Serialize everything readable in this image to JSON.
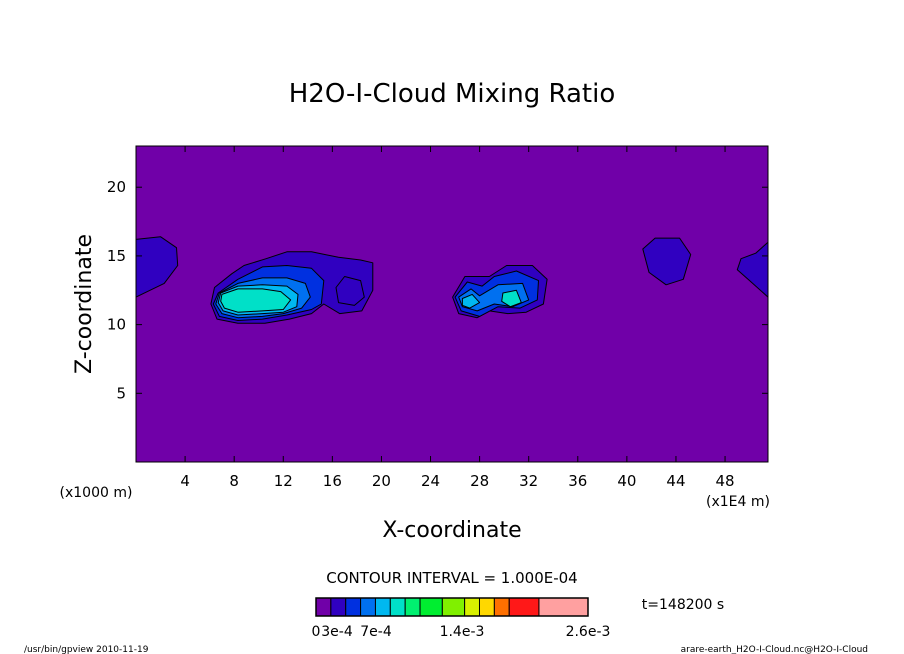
{
  "chart_data": {
    "type": "heatmap",
    "title": "H2O-I-Cloud Mixing Ratio",
    "xlabel": "X-coordinate",
    "ylabel": "Z-coordinate",
    "x_unit_left": "(x1000 m)",
    "x_unit_right": "(x1E4 m)",
    "xlim": [
      0,
      51.5
    ],
    "ylim": [
      0,
      23
    ],
    "x_ticks": [
      4,
      8,
      12,
      16,
      20,
      24,
      28,
      32,
      36,
      40,
      44,
      48
    ],
    "y_ticks": [
      5,
      10,
      15,
      20
    ],
    "contour_interval_text": "CONTOUR INTERVAL = 1.000E-04",
    "time_text": "t=148200 s",
    "colorbar": {
      "colors": [
        "#7000a8",
        "#3000c0",
        "#0030e0",
        "#0070f0",
        "#00b8f0",
        "#00e0c8",
        "#00f070",
        "#00ee30",
        "#80f000",
        "#d8f000",
        "#ffd800",
        "#ff7000",
        "#ff1818",
        "#ffa0a0"
      ],
      "widths": [
        1,
        1,
        1,
        1,
        1,
        1,
        1,
        1.5,
        1.5,
        1,
        1,
        1,
        2,
        3.3
      ],
      "labels": [
        "0",
        "3e-4",
        "7e-4",
        "1.4e-3",
        "2.6e-3"
      ]
    },
    "background_color": "#7000a8",
    "features": [
      {
        "name": "left-edge-cloud",
        "levels": [
          [
            [
              0,
              16.2
            ],
            [
              2,
              16.4
            ],
            [
              3.3,
              15.6
            ],
            [
              3.4,
              14.3
            ],
            [
              2.3,
              13
            ],
            [
              0,
              12
            ]
          ]
        ]
      },
      {
        "name": "main-cloud",
        "levels": [
          [
            [
              6.4,
              12.7
            ],
            [
              7.8,
              13.7
            ],
            [
              8.8,
              14.3
            ],
            [
              10.6,
              14.8
            ],
            [
              12.3,
              15.3
            ],
            [
              14.3,
              15.3
            ],
            [
              16.5,
              14.9
            ],
            [
              18.3,
              14.7
            ],
            [
              19.3,
              14.5
            ],
            [
              19.3,
              12.5
            ],
            [
              18.4,
              11
            ],
            [
              16.6,
              10.8
            ],
            [
              15.3,
              11.5
            ],
            [
              14.3,
              10.8
            ],
            [
              12.5,
              10.4
            ],
            [
              10.5,
              10.1
            ],
            [
              8.3,
              10.1
            ],
            [
              6.6,
              10.4
            ],
            [
              6.1,
              11.5
            ]
          ],
          [
            [
              6.7,
              12.3
            ],
            [
              8.3,
              13.3
            ],
            [
              10.3,
              14.2
            ],
            [
              12.3,
              14.3
            ],
            [
              14.3,
              14.1
            ],
            [
              15.3,
              13.2
            ],
            [
              15.1,
              11.5
            ],
            [
              14.3,
              11.1
            ],
            [
              12.3,
              10.7
            ],
            [
              10.3,
              10.4
            ],
            [
              8.3,
              10.3
            ],
            [
              6.8,
              10.6
            ],
            [
              6.3,
              11.5
            ]
          ],
          [
            [
              6.8,
              12.3
            ],
            [
              8.3,
              13
            ],
            [
              10.3,
              13.4
            ],
            [
              12.3,
              13.4
            ],
            [
              13.8,
              13
            ],
            [
              14.2,
              12
            ],
            [
              13.5,
              11.2
            ],
            [
              12,
              10.8
            ],
            [
              10.3,
              10.6
            ],
            [
              8.3,
              10.5
            ],
            [
              7,
              10.8
            ],
            [
              6.5,
              11.5
            ]
          ],
          [
            [
              6.9,
              12.3
            ],
            [
              8.3,
              12.8
            ],
            [
              10.3,
              12.9
            ],
            [
              12.3,
              12.8
            ],
            [
              13.2,
              12.2
            ],
            [
              13.1,
              11.3
            ],
            [
              12,
              10.9
            ],
            [
              10.3,
              10.8
            ],
            [
              8.3,
              10.7
            ],
            [
              7.1,
              11
            ],
            [
              6.7,
              11.6
            ]
          ],
          [
            [
              7,
              12.2
            ],
            [
              8.3,
              12.6
            ],
            [
              10.3,
              12.6
            ],
            [
              11.8,
              12.4
            ],
            [
              12.6,
              11.8
            ],
            [
              12,
              11.1
            ],
            [
              10.3,
              11
            ],
            [
              8.3,
              10.9
            ],
            [
              7.2,
              11.2
            ],
            [
              6.9,
              11.7
            ]
          ]
        ]
      },
      {
        "name": "main-cloud-side-blob",
        "levels": [
          [
            [
              17,
              13.5
            ],
            [
              18.3,
              13.2
            ],
            [
              18.6,
              12
            ],
            [
              17.8,
              11.4
            ],
            [
              16.5,
              11.6
            ],
            [
              16.3,
              12.7
            ]
          ]
        ]
      },
      {
        "name": "right-cloud",
        "levels": [
          [
            [
              25.8,
              12
            ],
            [
              26.8,
              13.5
            ],
            [
              28.8,
              13.5
            ],
            [
              30.2,
              14.3
            ],
            [
              32.3,
              14.3
            ],
            [
              33.5,
              13.3
            ],
            [
              33.2,
              11.5
            ],
            [
              31.8,
              10.9
            ],
            [
              30.3,
              10.8
            ],
            [
              28.8,
              11
            ],
            [
              27.8,
              10.5
            ],
            [
              26.3,
              10.8
            ]
          ],
          [
            [
              26,
              12
            ],
            [
              27,
              13.1
            ],
            [
              28.2,
              12.8
            ],
            [
              29.2,
              13.5
            ],
            [
              31,
              13.9
            ],
            [
              32.8,
              13.2
            ],
            [
              32.7,
              11.8
            ],
            [
              31.3,
              11.2
            ],
            [
              29.5,
              11.3
            ],
            [
              28,
              10.6
            ],
            [
              26.5,
              11
            ]
          ],
          [
            [
              26.3,
              12
            ],
            [
              27.3,
              12.6
            ],
            [
              28,
              12.1
            ],
            [
              29.5,
              12.9
            ],
            [
              31.5,
              13
            ],
            [
              32,
              11.8
            ],
            [
              30.7,
              11.3
            ],
            [
              29.2,
              11.5
            ],
            [
              27.8,
              11
            ],
            [
              26.6,
              11.3
            ]
          ],
          [
            [
              26.6,
              11.9
            ],
            [
              27.4,
              12.2
            ],
            [
              28,
              11.6
            ],
            [
              27.2,
              11.2
            ],
            [
              26.6,
              11.4
            ]
          ],
          [
            [
              29.9,
              12.3
            ],
            [
              31,
              12.5
            ],
            [
              31.4,
              11.6
            ],
            [
              30.5,
              11.3
            ],
            [
              29.8,
              11.7
            ]
          ]
        ]
      },
      {
        "name": "cloud-44",
        "levels": [
          [
            [
              41.3,
              15.5
            ],
            [
              42.3,
              16.3
            ],
            [
              44.3,
              16.3
            ],
            [
              45.2,
              15.1
            ],
            [
              44.6,
              13.3
            ],
            [
              43.2,
              12.9
            ],
            [
              41.8,
              13.8
            ]
          ]
        ]
      },
      {
        "name": "right-edge-cloud",
        "levels": [
          [
            [
              51.5,
              16
            ],
            [
              50.5,
              15.2
            ],
            [
              49.3,
              14.8
            ],
            [
              49,
              14
            ],
            [
              50,
              13.2
            ],
            [
              51.5,
              12
            ]
          ]
        ]
      }
    ],
    "footer_left": "/usr/bin/gpview  2010-11-19",
    "footer_right": "arare-earth_H2O-I-Cloud.nc@H2O-I-Cloud"
  }
}
